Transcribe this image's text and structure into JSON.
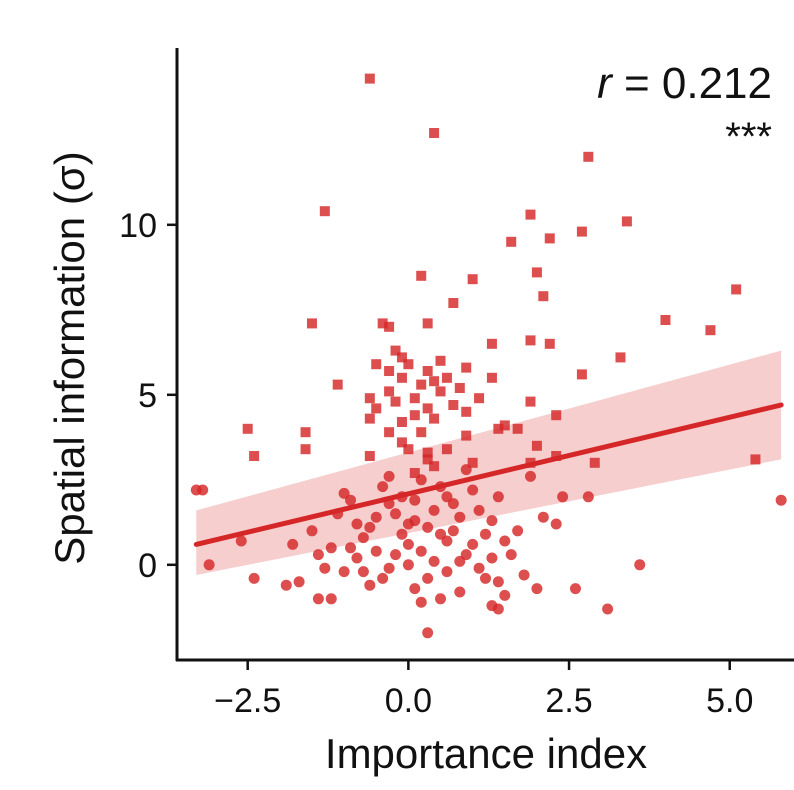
{
  "chart_data": {
    "type": "scatter",
    "xlabel": "Importance index",
    "ylabel": "Spatial information (σ)",
    "xlim": [
      -3.6,
      6.0
    ],
    "ylim": [
      -2.8,
      15.2
    ],
    "xticks": [
      -2.5,
      0.0,
      2.5,
      5.0
    ],
    "xtick_labels": [
      "−2.5",
      "0.0",
      "2.5",
      "5.0"
    ],
    "yticks": [
      0,
      5,
      10
    ],
    "ytick_labels": [
      "0",
      "5",
      "10"
    ],
    "grid": false,
    "annotation": {
      "r_symbol": "r",
      "r_rest": " = 0.212",
      "significance": "***"
    },
    "colors": {
      "points": "#d62728",
      "line": "#d62728",
      "band": "#f4c6c6"
    },
    "regression": {
      "x": [
        -3.3,
        5.8
      ],
      "y": [
        0.6,
        4.7
      ],
      "band_upper": [
        1.6,
        6.3
      ],
      "band_lower": [
        -0.3,
        3.1
      ]
    },
    "series": [
      {
        "marker": "square",
        "points": [
          [
            -0.6,
            14.3
          ],
          [
            0.4,
            12.7
          ],
          [
            2.8,
            12.0
          ],
          [
            -1.3,
            10.4
          ],
          [
            1.9,
            10.3
          ],
          [
            3.4,
            10.1
          ],
          [
            2.7,
            9.8
          ],
          [
            2.2,
            9.6
          ],
          [
            1.6,
            9.5
          ],
          [
            2.0,
            8.6
          ],
          [
            0.2,
            8.5
          ],
          [
            1.0,
            8.4
          ],
          [
            5.1,
            8.1
          ],
          [
            2.1,
            7.9
          ],
          [
            0.7,
            7.7
          ],
          [
            4.0,
            7.2
          ],
          [
            -1.5,
            7.1
          ],
          [
            -0.4,
            7.1
          ],
          [
            0.3,
            7.1
          ],
          [
            -0.3,
            7.0
          ],
          [
            4.7,
            6.9
          ],
          [
            1.9,
            6.6
          ],
          [
            2.2,
            6.5
          ],
          [
            1.3,
            6.5
          ],
          [
            -0.2,
            6.3
          ],
          [
            -0.1,
            6.1
          ],
          [
            0.5,
            6.0
          ],
          [
            0.0,
            5.9
          ],
          [
            3.3,
            6.1
          ],
          [
            -0.5,
            5.9
          ],
          [
            -0.3,
            5.7
          ],
          [
            0.3,
            5.7
          ],
          [
            0.9,
            5.8
          ],
          [
            -0.1,
            5.5
          ],
          [
            2.7,
            5.6
          ],
          [
            0.6,
            5.5
          ],
          [
            -1.1,
            5.3
          ],
          [
            0.2,
            5.3
          ],
          [
            0.4,
            5.4
          ],
          [
            1.3,
            5.5
          ],
          [
            0.8,
            5.2
          ],
          [
            -0.3,
            5.1
          ],
          [
            0.5,
            5.1
          ],
          [
            -0.6,
            4.9
          ],
          [
            0.1,
            4.9
          ],
          [
            1.1,
            4.9
          ],
          [
            -0.2,
            4.8
          ],
          [
            0.7,
            4.7
          ],
          [
            1.9,
            4.8
          ],
          [
            -0.5,
            4.6
          ],
          [
            0.3,
            4.6
          ],
          [
            0.9,
            4.5
          ],
          [
            0.1,
            4.4
          ],
          [
            -0.6,
            4.3
          ],
          [
            0.4,
            4.3
          ],
          [
            -0.1,
            4.2
          ],
          [
            1.5,
            4.1
          ],
          [
            2.3,
            4.4
          ],
          [
            -2.5,
            4.0
          ],
          [
            -1.6,
            3.9
          ],
          [
            -0.3,
            3.9
          ],
          [
            0.2,
            3.9
          ],
          [
            1.4,
            4.0
          ],
          [
            1.7,
            4.0
          ],
          [
            0.9,
            3.8
          ],
          [
            -0.1,
            3.6
          ],
          [
            2.0,
            3.5
          ],
          [
            -1.6,
            3.4
          ],
          [
            0.0,
            3.4
          ],
          [
            0.6,
            3.4
          ],
          [
            2.3,
            3.2
          ],
          [
            0.3,
            3.3
          ],
          [
            -2.4,
            3.2
          ],
          [
            -0.6,
            3.2
          ],
          [
            0.3,
            3.1
          ],
          [
            1.0,
            3.0
          ],
          [
            2.9,
            3.0
          ],
          [
            0.4,
            2.9
          ],
          [
            1.9,
            3.0
          ],
          [
            5.4,
            3.1
          ],
          [
            0.1,
            2.7
          ]
        ]
      },
      {
        "marker": "circle",
        "points": [
          [
            -3.3,
            2.2
          ],
          [
            -3.2,
            2.2
          ],
          [
            5.8,
            1.9
          ],
          [
            2.4,
            2.0
          ],
          [
            2.8,
            2.0
          ],
          [
            1.9,
            2.6
          ],
          [
            -2.6,
            0.7
          ],
          [
            -1.8,
            0.6
          ],
          [
            -3.1,
            0.0
          ],
          [
            3.6,
            0.0
          ],
          [
            -2.4,
            -0.4
          ],
          [
            -1.9,
            -0.6
          ],
          [
            2.0,
            -0.7
          ],
          [
            2.6,
            -0.7
          ],
          [
            3.1,
            -1.3
          ],
          [
            -1.4,
            -1.0
          ],
          [
            -1.2,
            -1.0
          ],
          [
            1.3,
            -1.2
          ],
          [
            1.4,
            -1.3
          ],
          [
            0.3,
            -2.0
          ],
          [
            -0.8,
            1.2
          ],
          [
            0.7,
            1.8
          ],
          [
            1.2,
            0.9
          ],
          [
            1.5,
            0.7
          ],
          [
            -0.4,
            2.3
          ],
          [
            0.5,
            2.3
          ],
          [
            -0.2,
            1.5
          ],
          [
            0.1,
            1.3
          ],
          [
            0.8,
            1.4
          ],
          [
            1.4,
            2.0
          ],
          [
            -0.9,
            1.9
          ],
          [
            -0.6,
            1.1
          ],
          [
            0.3,
            1.1
          ],
          [
            -0.1,
            0.9
          ],
          [
            0.6,
            0.7
          ],
          [
            1.0,
            0.6
          ],
          [
            -0.5,
            0.4
          ],
          [
            0.2,
            0.4
          ],
          [
            0.9,
            0.3
          ],
          [
            1.3,
            0.2
          ],
          [
            -1.2,
            0.5
          ],
          [
            -0.8,
            0.2
          ],
          [
            0.0,
            0.0
          ],
          [
            0.4,
            0.1
          ],
          [
            1.1,
            -0.1
          ],
          [
            -1.4,
            0.3
          ],
          [
            -1.0,
            -0.2
          ],
          [
            -0.3,
            -0.1
          ],
          [
            0.6,
            -0.2
          ],
          [
            1.2,
            -0.4
          ],
          [
            -0.6,
            -0.6
          ],
          [
            0.1,
            -0.7
          ],
          [
            0.8,
            -0.8
          ],
          [
            -1.7,
            -0.5
          ],
          [
            0.5,
            -1.0
          ],
          [
            2.1,
            1.4
          ],
          [
            1.7,
            1.0
          ],
          [
            -1.1,
            1.5
          ],
          [
            -0.3,
            1.8
          ],
          [
            0.2,
            2.5
          ],
          [
            0.9,
            2.8
          ],
          [
            1.0,
            2.2
          ],
          [
            -0.7,
            0.8
          ],
          [
            0.0,
            0.6
          ],
          [
            0.7,
            1.0
          ],
          [
            1.6,
            0.3
          ],
          [
            -1.5,
            1.0
          ],
          [
            -0.1,
            2.0
          ],
          [
            0.4,
            1.6
          ],
          [
            1.3,
            1.3
          ],
          [
            -0.4,
            -0.4
          ],
          [
            0.3,
            -0.4
          ],
          [
            1.8,
            -0.3
          ],
          [
            -1.3,
            -0.1
          ],
          [
            0.0,
            1.2
          ],
          [
            0.6,
            2.0
          ],
          [
            -0.2,
            0.3
          ],
          [
            1.1,
            1.6
          ],
          [
            2.3,
            1.2
          ],
          [
            -0.9,
            0.5
          ],
          [
            0.2,
            -1.1
          ],
          [
            1.5,
            -0.9
          ],
          [
            -0.5,
            1.4
          ],
          [
            0.8,
            0.1
          ],
          [
            -1.0,
            2.1
          ],
          [
            -0.3,
            2.6
          ],
          [
            0.5,
            0.9
          ],
          [
            1.4,
            -0.5
          ],
          [
            -0.7,
            -0.2
          ],
          [
            0.1,
            1.9
          ]
        ]
      }
    ]
  }
}
